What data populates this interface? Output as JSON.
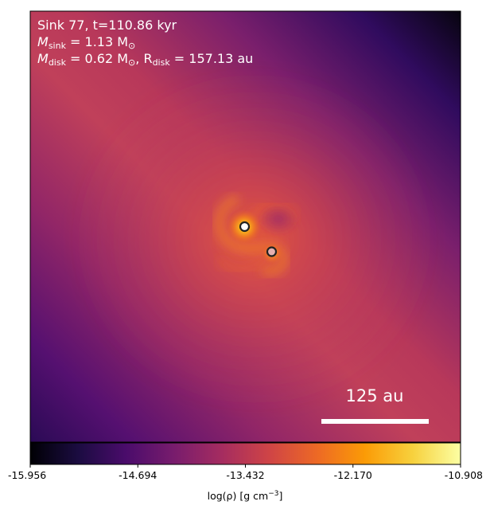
{
  "annotation": {
    "line1": "Sink 77, t=110.86 kyr",
    "line2_prefix": "M",
    "line2_sub": "sink",
    "line2_rest": " = 1.13 M",
    "line2_sun": "⊙",
    "line3_prefix": "M",
    "line3_sub": "disk",
    "line3_mid": " = 0.62 M",
    "line3_sun": "⊙",
    "line3_sep": ", R",
    "line3_sub2": "disk",
    "line3_rest": " = 157.13 au"
  },
  "scale_bar": {
    "label": "125 au"
  },
  "colorbar": {
    "label_text": "log(ρ) [g cm",
    "label_exp": "−3",
    "label_close": "]",
    "ticks": [
      "-15.956",
      "-14.694",
      "-13.432",
      "-12.170",
      "-10.908"
    ],
    "stops": [
      "#000004",
      "#1b0c41",
      "#4a0c6b",
      "#781c6d",
      "#a52c60",
      "#cf4446",
      "#ed6925",
      "#fb9b06",
      "#f7d13d",
      "#fcffa4"
    ]
  },
  "sinks": [
    {
      "name": "primary",
      "fill": "#ffffff",
      "stroke": "#222222"
    },
    {
      "name": "secondary",
      "fill": "#e6b0b0",
      "stroke": "#222222"
    }
  ]
}
